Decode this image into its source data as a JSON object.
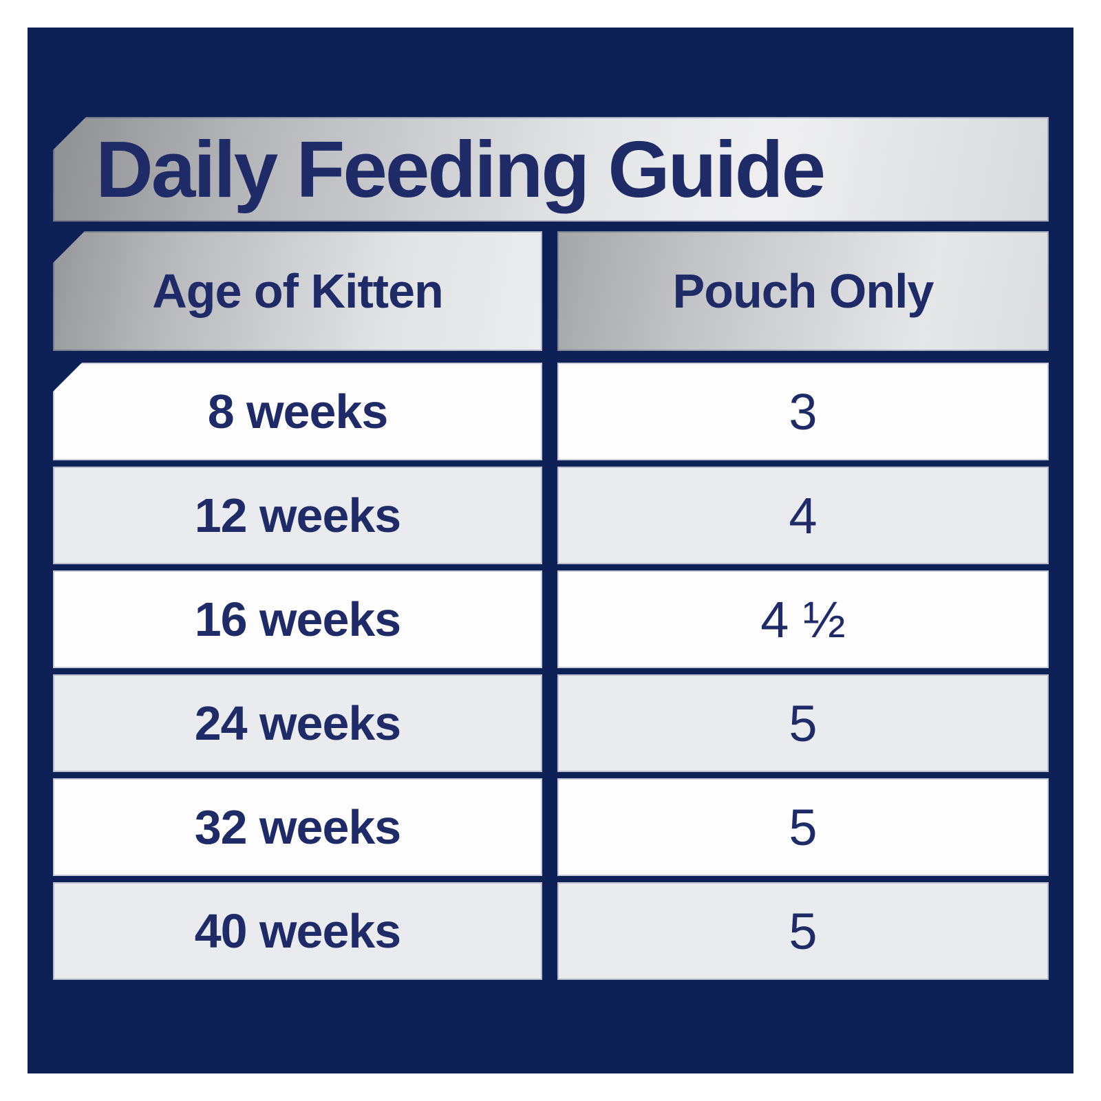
{
  "title": "Daily Feeding Guide",
  "table": {
    "columns": [
      {
        "label": "Age of Kitten"
      },
      {
        "label": "Pouch Only"
      }
    ],
    "rows": [
      {
        "age": "8 weeks",
        "pouches": "3"
      },
      {
        "age": "12 weeks",
        "pouches": "4"
      },
      {
        "age": "16 weeks",
        "pouches": "4 ½"
      },
      {
        "age": "24 weeks",
        "pouches": "5"
      },
      {
        "age": "32 weeks",
        "pouches": "5"
      },
      {
        "age": "40 weeks",
        "pouches": "5"
      }
    ]
  },
  "colors": {
    "panel_navy": "#0d2157",
    "text_navy": "#1e2b66",
    "metallic_silver_dark": "#8e8f93",
    "metallic_silver_light": "#efeff1",
    "row_white": "#fdfdfe",
    "row_gray": "#e9ebef",
    "page_margin_white": "#ffffff"
  },
  "chart_data": {
    "type": "table",
    "title": "Daily Feeding Guide",
    "columns": [
      "Age of Kitten",
      "Pouch Only"
    ],
    "rows": [
      [
        "8 weeks",
        "3"
      ],
      [
        "12 weeks",
        "4"
      ],
      [
        "16 weeks",
        "4 ½"
      ],
      [
        "24 weeks",
        "5"
      ],
      [
        "32 weeks",
        "5"
      ],
      [
        "40 weeks",
        "5"
      ]
    ],
    "values_numeric": {
      "age_weeks": [
        8,
        12,
        16,
        24,
        32,
        40
      ],
      "pouches_per_day": [
        3,
        4,
        4.5,
        5,
        5,
        5
      ]
    },
    "layout_hints": {
      "alternating_row_shading": true,
      "metallic_header_bars": true,
      "beveled_top_left_corners": true
    }
  }
}
